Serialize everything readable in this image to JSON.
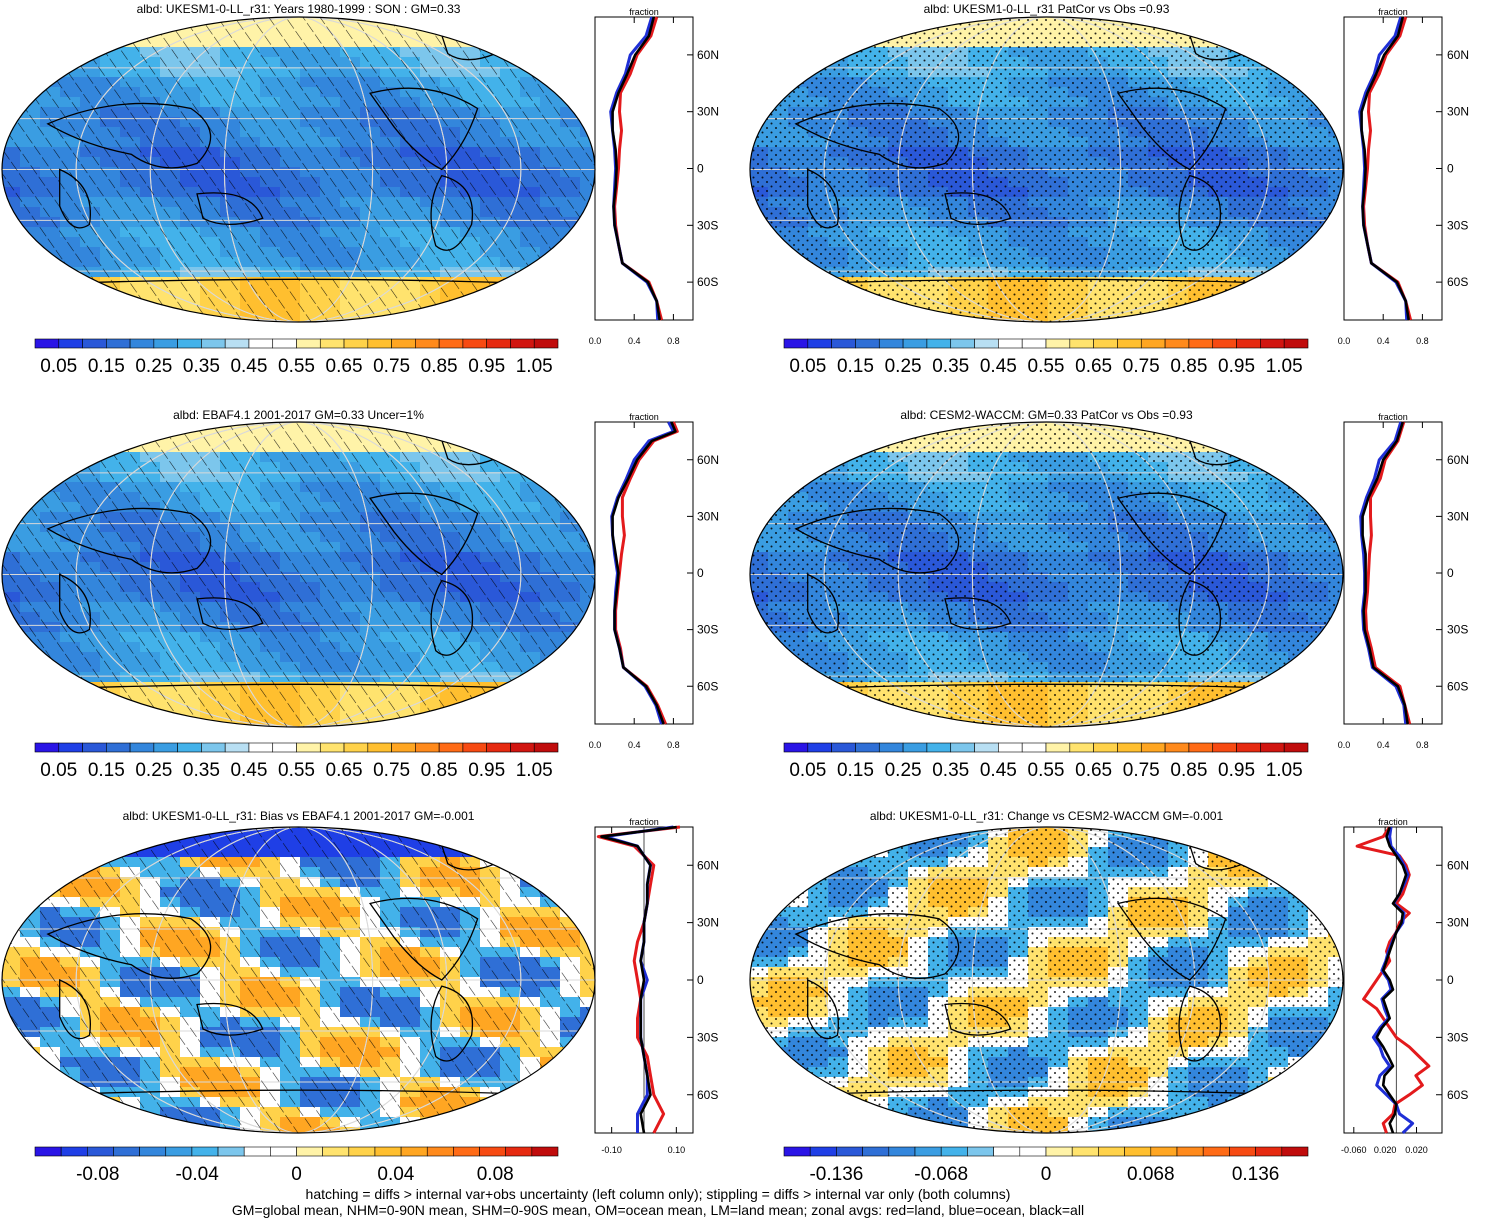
{
  "footer": {
    "line1": "hatching = diffs > internal var+obs uncertainty (left column only); stippling = diffs > internal var only (both columns)",
    "line2": "GM=global mean, NHM=0-90N mean, SHM=0-90S mean, OM=ocean mean, LM=land mean; zonal avgs: red=land, blue=ocean, black=all"
  },
  "colors": {
    "land_line": "#e31a1c",
    "ocean_line": "#1f2fd6",
    "all_line": "#000000",
    "colorbar_abs": [
      "#2a14e6",
      "#1f3fe6",
      "#2a58d8",
      "#2f6fd6",
      "#3386dc",
      "#3a9de2",
      "#43b2ea",
      "#7cc6ec",
      "#b8dff3",
      "#ffffff",
      "#ffffff",
      "#fff3a8",
      "#ffe36e",
      "#ffd24a",
      "#ffbf2f",
      "#ffa622",
      "#ff8a1c",
      "#ff6b16",
      "#f74a12",
      "#e62a10",
      "#d11510",
      "#c00c0c"
    ],
    "colorbar_diff": [
      "#2a14e6",
      "#1f3fe6",
      "#2a58d8",
      "#2f6fd6",
      "#3386dc",
      "#3a9de2",
      "#43b2ea",
      "#7cc6ec",
      "#ffffff",
      "#ffffff",
      "#fff3a8",
      "#ffe36e",
      "#ffd24a",
      "#ffbf2f",
      "#ffa622",
      "#ff8a1c",
      "#ff6b16",
      "#f74a12",
      "#e62a10",
      "#c00c0c"
    ]
  },
  "lat_ticks": [
    "60N",
    "30N",
    "0",
    "30S",
    "60S"
  ],
  "chart_data": [
    {
      "type": "heatmap",
      "title": "albd: UKESM1-0-LL_r31: Years 1980-1999 : SON : GM=0.33",
      "field": "mean",
      "colorbar": {
        "labels": [
          "0.05",
          "0.15",
          "0.25",
          "0.35",
          "0.45",
          "0.55",
          "0.65",
          "0.75",
          "0.85",
          "0.95",
          "1.05"
        ],
        "range": [
          0,
          1.1
        ]
      },
      "overlay": "hatching",
      "zonal": {
        "xlabel": "fraction",
        "xticks": [
          "0.0",
          "0.4",
          "0.8"
        ],
        "xlim": [
          0.0,
          1.0
        ],
        "lat": [
          -80,
          -70,
          -60,
          -50,
          -40,
          -30,
          -20,
          -10,
          0,
          10,
          20,
          30,
          40,
          50,
          60,
          70,
          80
        ],
        "all": [
          0.66,
          0.63,
          0.54,
          0.28,
          0.24,
          0.2,
          0.19,
          0.21,
          0.22,
          0.21,
          0.18,
          0.18,
          0.24,
          0.33,
          0.41,
          0.55,
          0.6
        ],
        "land": [
          0.68,
          0.63,
          0.55,
          0.28,
          0.24,
          0.21,
          0.2,
          0.22,
          0.24,
          0.25,
          0.27,
          0.25,
          0.26,
          0.36,
          0.43,
          0.57,
          0.63
        ],
        "ocean": [
          0.64,
          0.63,
          0.53,
          0.28,
          0.24,
          0.2,
          0.19,
          0.2,
          0.21,
          0.2,
          0.18,
          0.16,
          0.22,
          0.31,
          0.36,
          0.52,
          0.58
        ]
      }
    },
    {
      "type": "heatmap",
      "title": "albd: UKESM1-0-LL_r31 PatCor vs Obs =0.93",
      "field": "mean",
      "colorbar": {
        "labels": [
          "0.05",
          "0.15",
          "0.25",
          "0.35",
          "0.45",
          "0.55",
          "0.65",
          "0.75",
          "0.85",
          "0.95",
          "1.05"
        ],
        "range": [
          0,
          1.1
        ]
      },
      "overlay": "stippling",
      "zonal": {
        "xlabel": "fraction",
        "xticks": [
          "0.0",
          "0.4",
          "0.8"
        ],
        "xlim": [
          0.0,
          1.0
        ],
        "lat": [
          -80,
          -70,
          -60,
          -50,
          -40,
          -30,
          -20,
          -10,
          0,
          10,
          20,
          30,
          40,
          50,
          60,
          70,
          80
        ],
        "all": [
          0.66,
          0.63,
          0.54,
          0.28,
          0.24,
          0.2,
          0.19,
          0.21,
          0.22,
          0.21,
          0.18,
          0.18,
          0.24,
          0.33,
          0.41,
          0.55,
          0.6
        ],
        "land": [
          0.68,
          0.63,
          0.55,
          0.28,
          0.24,
          0.21,
          0.2,
          0.22,
          0.24,
          0.25,
          0.27,
          0.25,
          0.26,
          0.36,
          0.43,
          0.57,
          0.63
        ],
        "ocean": [
          0.64,
          0.63,
          0.53,
          0.28,
          0.24,
          0.2,
          0.19,
          0.2,
          0.21,
          0.2,
          0.18,
          0.16,
          0.22,
          0.31,
          0.36,
          0.52,
          0.58
        ]
      }
    },
    {
      "type": "heatmap",
      "title": "albd: EBAF4.1 2001-2017 GM=0.33 Uncer=1%",
      "field": "mean",
      "colorbar": {
        "labels": [
          "0.05",
          "0.15",
          "0.25",
          "0.35",
          "0.45",
          "0.55",
          "0.65",
          "0.75",
          "0.85",
          "0.95",
          "1.05"
        ],
        "range": [
          0,
          1.1
        ]
      },
      "overlay": "hatching",
      "zonal": {
        "xlabel": "fraction",
        "xticks": [
          "0.0",
          "0.4",
          "0.8"
        ],
        "xlim": [
          0.0,
          1.0
        ],
        "lat": [
          -80,
          -70,
          -60,
          -50,
          -40,
          -30,
          -20,
          -10,
          0,
          10,
          20,
          30,
          40,
          50,
          60,
          70,
          75,
          80
        ],
        "all": [
          0.7,
          0.63,
          0.52,
          0.29,
          0.25,
          0.2,
          0.2,
          0.22,
          0.24,
          0.21,
          0.18,
          0.18,
          0.24,
          0.34,
          0.43,
          0.58,
          0.82,
          0.78
        ],
        "land": [
          0.72,
          0.64,
          0.53,
          0.29,
          0.26,
          0.21,
          0.21,
          0.23,
          0.25,
          0.27,
          0.3,
          0.28,
          0.28,
          0.36,
          0.45,
          0.6,
          0.84,
          0.8
        ],
        "ocean": [
          0.68,
          0.62,
          0.51,
          0.29,
          0.25,
          0.2,
          0.2,
          0.21,
          0.23,
          0.2,
          0.18,
          0.17,
          0.23,
          0.32,
          0.4,
          0.55,
          0.8,
          0.75
        ]
      }
    },
    {
      "type": "heatmap",
      "title": "albd: CESM2-WACCM: GM=0.33 PatCor vs Obs =0.93",
      "field": "mean",
      "colorbar": {
        "labels": [
          "0.05",
          "0.15",
          "0.25",
          "0.35",
          "0.45",
          "0.55",
          "0.65",
          "0.75",
          "0.85",
          "0.95",
          "1.05"
        ],
        "range": [
          0,
          1.1
        ]
      },
      "overlay": "stippling",
      "zonal": {
        "xlabel": "fraction",
        "xticks": [
          "0.0",
          "0.4",
          "0.8"
        ],
        "xlim": [
          0.0,
          1.0
        ],
        "lat": [
          -80,
          -70,
          -60,
          -50,
          -40,
          -30,
          -20,
          -10,
          0,
          10,
          20,
          30,
          40,
          50,
          60,
          70,
          80
        ],
        "all": [
          0.65,
          0.62,
          0.55,
          0.3,
          0.26,
          0.21,
          0.2,
          0.22,
          0.22,
          0.22,
          0.19,
          0.19,
          0.25,
          0.34,
          0.4,
          0.54,
          0.6
        ],
        "land": [
          0.67,
          0.62,
          0.57,
          0.32,
          0.28,
          0.23,
          0.22,
          0.24,
          0.25,
          0.26,
          0.28,
          0.27,
          0.27,
          0.37,
          0.42,
          0.55,
          0.61
        ],
        "ocean": [
          0.63,
          0.61,
          0.53,
          0.29,
          0.25,
          0.2,
          0.19,
          0.21,
          0.21,
          0.2,
          0.18,
          0.17,
          0.23,
          0.31,
          0.36,
          0.52,
          0.58
        ]
      }
    },
    {
      "type": "heatmap",
      "title": "albd: UKESM1-0-LL_r31: Bias vs EBAF4.1 2001-2017  GM=-0.001",
      "field": "bias",
      "colorbar": {
        "labels": [
          "-0.08",
          "-0.04",
          "0",
          "0.04",
          "0.08"
        ],
        "range": [
          -0.1,
          0.1
        ]
      },
      "overlay": "hatching",
      "zonal": {
        "xlabel": "fraction",
        "xticks": [
          "-0.10",
          "0.10"
        ],
        "xlim": [
          -0.15,
          0.15
        ],
        "lat": [
          -80,
          -70,
          -60,
          -50,
          -40,
          -30,
          -20,
          -10,
          0,
          10,
          20,
          30,
          40,
          50,
          60,
          70,
          75,
          80
        ],
        "all": [
          0.0,
          -0.01,
          0.02,
          0.01,
          0.0,
          -0.01,
          -0.01,
          -0.01,
          0.0,
          -0.01,
          0.0,
          0.0,
          0.01,
          0.01,
          0.02,
          -0.02,
          -0.13,
          0.1
        ],
        "land": [
          0.03,
          0.06,
          0.03,
          0.02,
          0.01,
          -0.02,
          -0.02,
          -0.01,
          -0.02,
          -0.03,
          -0.02,
          0.0,
          0.01,
          0.02,
          0.03,
          -0.03,
          -0.14,
          0.11
        ],
        "ocean": [
          -0.02,
          -0.02,
          0.01,
          0.01,
          0.0,
          -0.01,
          -0.01,
          -0.01,
          0.01,
          -0.01,
          0.0,
          0.0,
          0.01,
          0.01,
          0.02,
          -0.02,
          -0.12,
          0.09
        ]
      }
    },
    {
      "type": "heatmap",
      "title": "albd: UKESM1-0-LL_r31: Change vs CESM2-WACCM GM=-0.001",
      "field": "change",
      "colorbar": {
        "labels": [
          "-0.136",
          "-0.068",
          "0",
          "0.068",
          "0.136"
        ],
        "range": [
          -0.17,
          0.17
        ]
      },
      "overlay": "stippling",
      "zonal": {
        "xlabel": "fraction",
        "xticks": [
          "-0.060",
          "0.020",
          "0.020"
        ],
        "xlim": [
          -0.08,
          0.07
        ],
        "lat": [
          -80,
          -75,
          -70,
          -65,
          -60,
          -55,
          -50,
          -45,
          -40,
          -35,
          -30,
          -25,
          -20,
          -15,
          -10,
          -5,
          0,
          5,
          10,
          15,
          20,
          25,
          30,
          35,
          40,
          45,
          50,
          55,
          60,
          65,
          70,
          75,
          80
        ],
        "all": [
          -0.005,
          -0.01,
          -0.002,
          0.0,
          -0.01,
          -0.02,
          -0.018,
          -0.005,
          -0.012,
          -0.02,
          -0.03,
          -0.022,
          -0.01,
          -0.015,
          -0.02,
          -0.005,
          -0.01,
          -0.02,
          -0.015,
          -0.01,
          -0.005,
          0.0,
          0.008,
          0.01,
          -0.005,
          0.005,
          0.01,
          0.015,
          0.01,
          0.0,
          -0.01,
          -0.015,
          -0.01
        ],
        "land": [
          -0.015,
          -0.02,
          -0.005,
          -0.002,
          0.02,
          0.04,
          0.03,
          0.05,
          0.035,
          0.02,
          0.0,
          -0.01,
          -0.02,
          -0.03,
          -0.05,
          -0.04,
          -0.03,
          -0.02,
          -0.01,
          -0.015,
          -0.01,
          0.0,
          0.005,
          0.02,
          0.0,
          0.01,
          0.015,
          0.02,
          0.015,
          0.005,
          -0.06,
          -0.02,
          -0.01
        ],
        "ocean": [
          0.01,
          0.025,
          0.005,
          0.0,
          -0.015,
          -0.03,
          -0.025,
          -0.01,
          -0.02,
          -0.025,
          -0.035,
          -0.025,
          -0.012,
          -0.018,
          -0.022,
          -0.008,
          -0.012,
          -0.022,
          -0.016,
          -0.012,
          -0.006,
          0.0,
          0.01,
          0.012,
          -0.004,
          0.005,
          0.012,
          0.018,
          0.012,
          0.004,
          -0.008,
          -0.01,
          -0.008
        ]
      }
    }
  ]
}
